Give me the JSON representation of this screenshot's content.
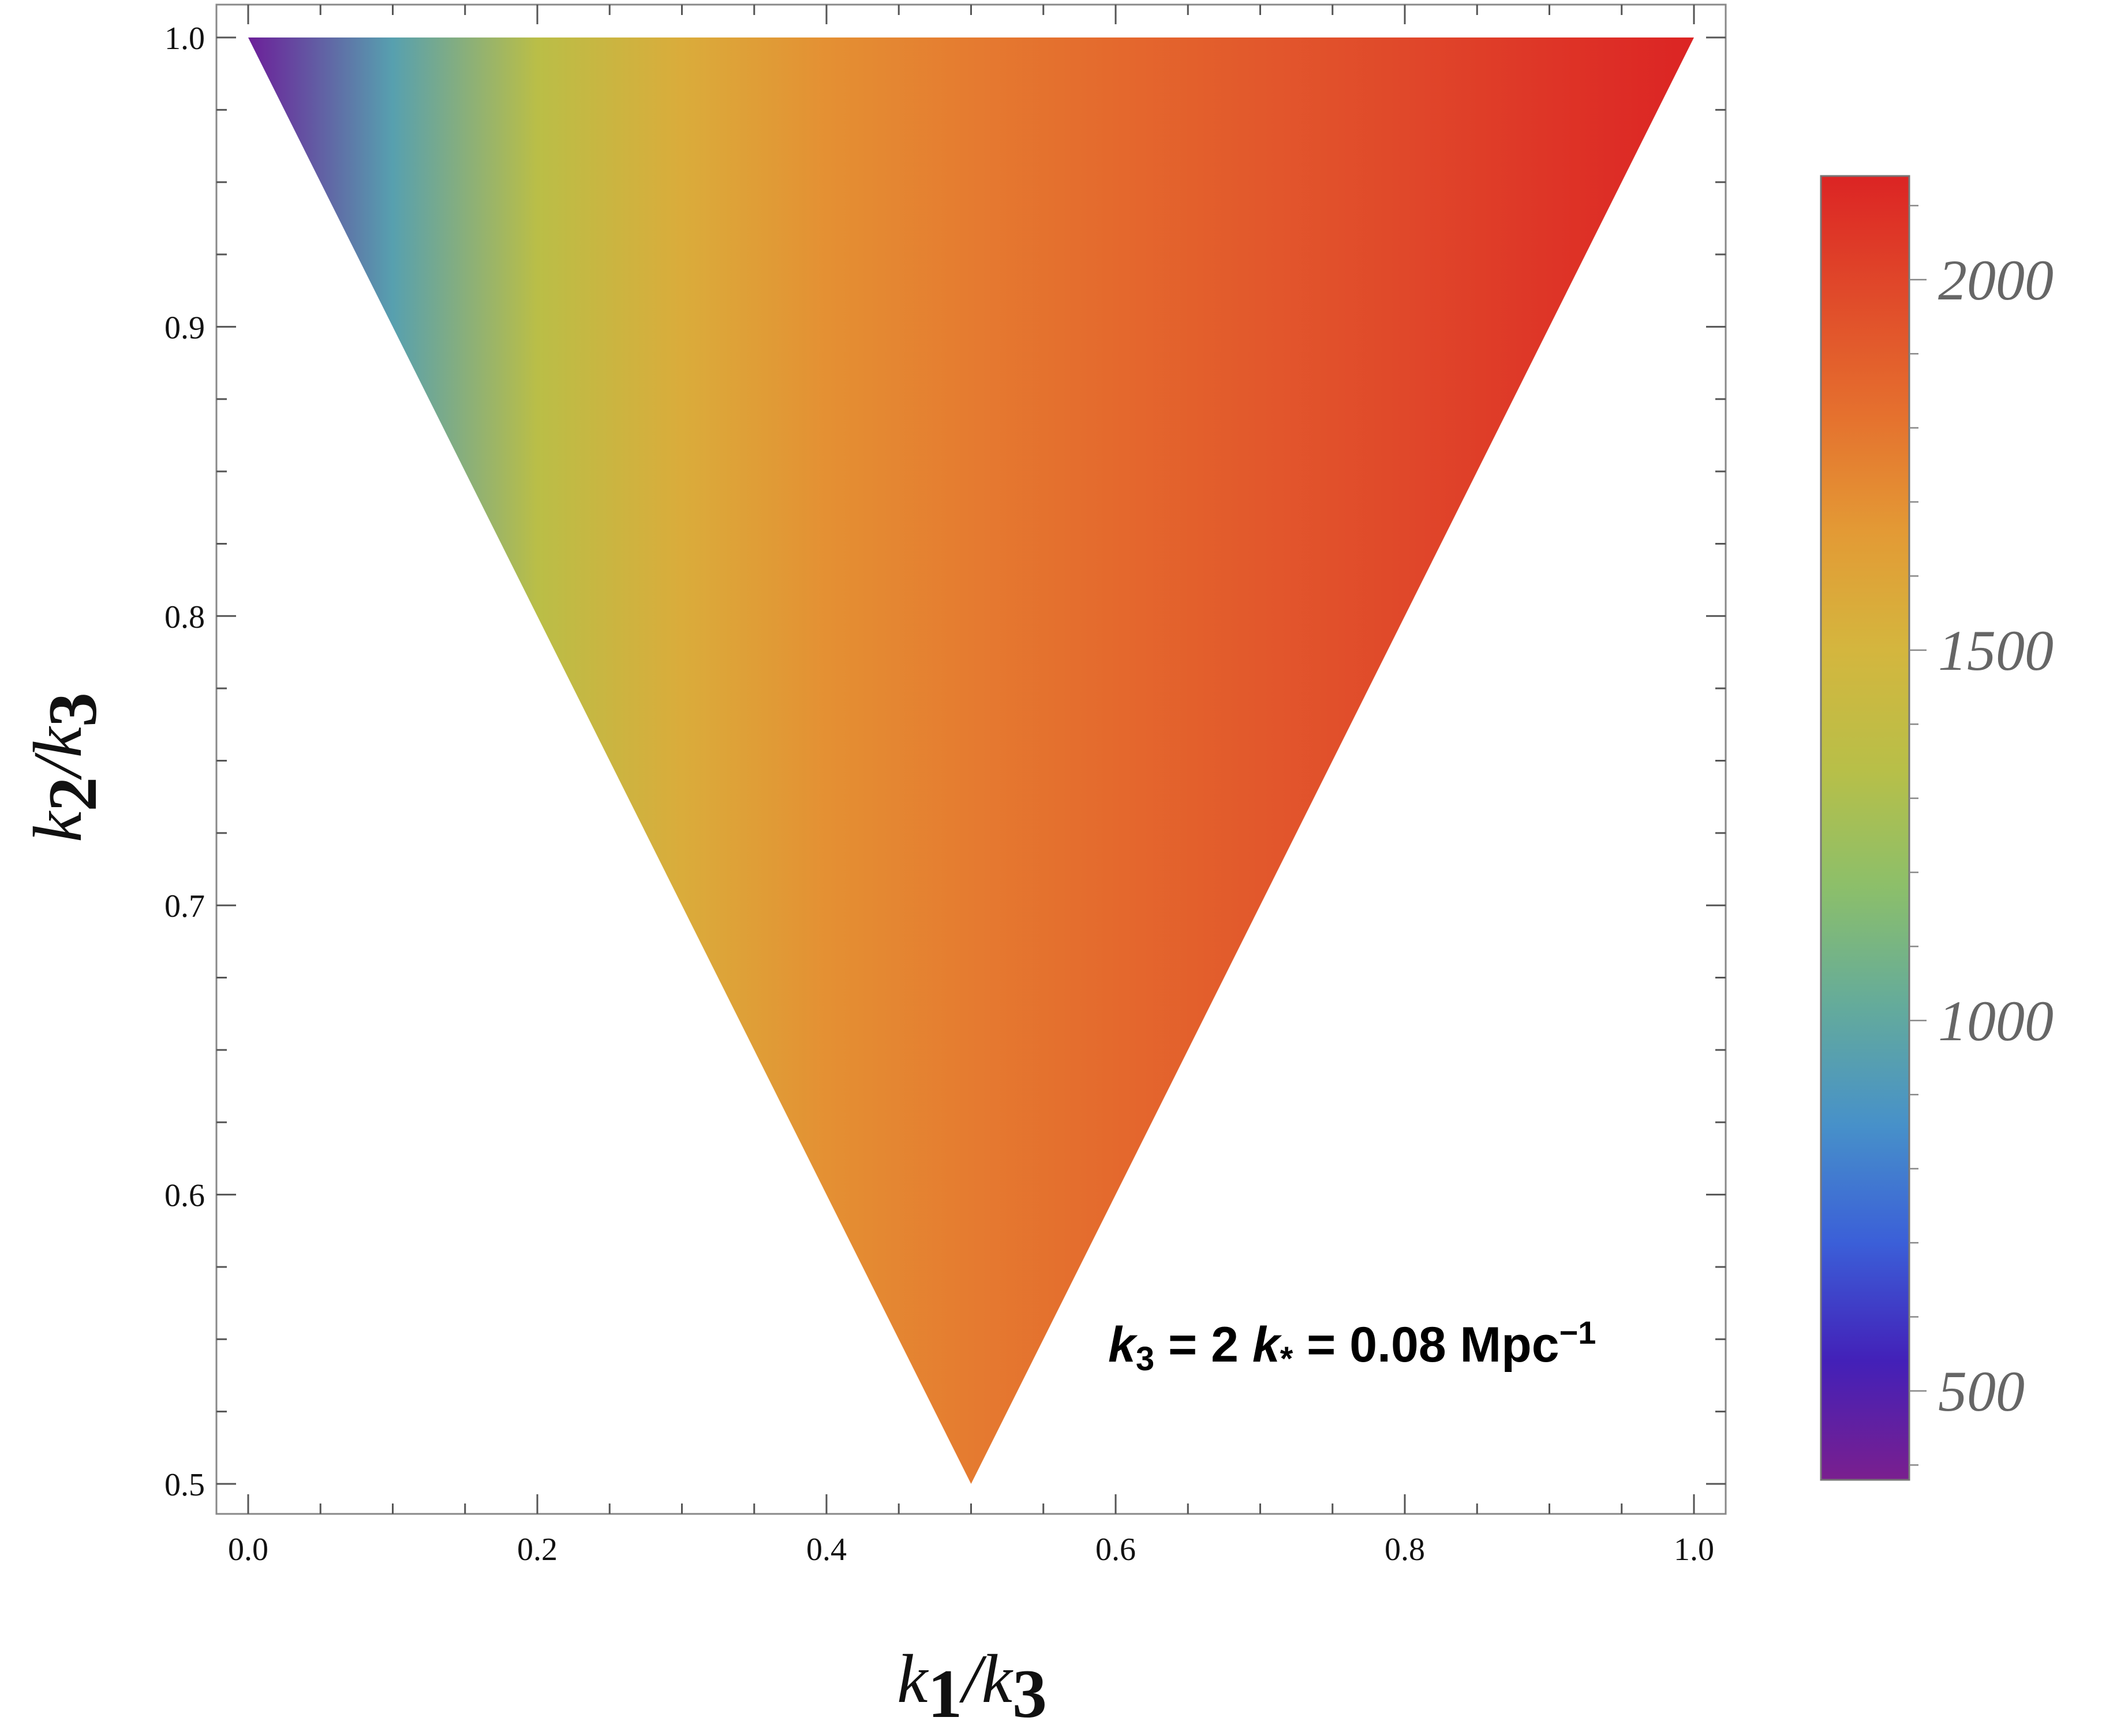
{
  "chart_data": {
    "type": "heatmap",
    "xlabel": {
      "var": "k",
      "sub1": "1",
      "slash": "/",
      "var2": "k",
      "sub2": "3"
    },
    "ylabel": {
      "var": "k",
      "sub1": "2",
      "slash": "/",
      "var2": "k",
      "sub2": "3"
    },
    "xlim": [
      0.0,
      1.0
    ],
    "ylim": [
      0.5,
      1.0
    ],
    "x_ticks": [
      "0.0",
      "0.2",
      "0.4",
      "0.6",
      "0.8",
      "1.0"
    ],
    "y_ticks": [
      "0.5",
      "0.6",
      "0.7",
      "0.8",
      "0.9",
      "1.0"
    ],
    "region": "triangle",
    "region_vertices": [
      [
        0.0,
        1.0
      ],
      [
        1.0,
        1.0
      ],
      [
        0.5,
        0.5
      ]
    ],
    "value_along_x": {
      "x": [
        0.0,
        0.1,
        0.2,
        0.3,
        0.4,
        0.5,
        0.6,
        0.7,
        0.8,
        0.9,
        1.0
      ],
      "values": [
        420,
        950,
        1350,
        1560,
        1700,
        1780,
        1850,
        1920,
        1990,
        2070,
        2140
      ]
    },
    "colorbar": {
      "range": [
        380,
        2140
      ],
      "ticks": [
        "500",
        "1000",
        "1500",
        "2000"
      ],
      "tick_values": [
        500,
        1000,
        1500,
        2000
      ],
      "minor_step": 100,
      "colors": [
        "#7a1f8e",
        "#4320b8",
        "#3b5fd8",
        "#4791c9",
        "#64ab9b",
        "#8cbf6a",
        "#b8bf48",
        "#d4b63e",
        "#e39a35",
        "#e5702e",
        "#e04a2a",
        "#dc2424"
      ]
    },
    "annotation": {
      "k": "k",
      "k_sub": "3",
      "eq1": " = 2 ",
      "kstar": "k",
      "kstar_sub": "*",
      "eq2": " = 0.08 Mpc",
      "sup": "−1"
    }
  }
}
